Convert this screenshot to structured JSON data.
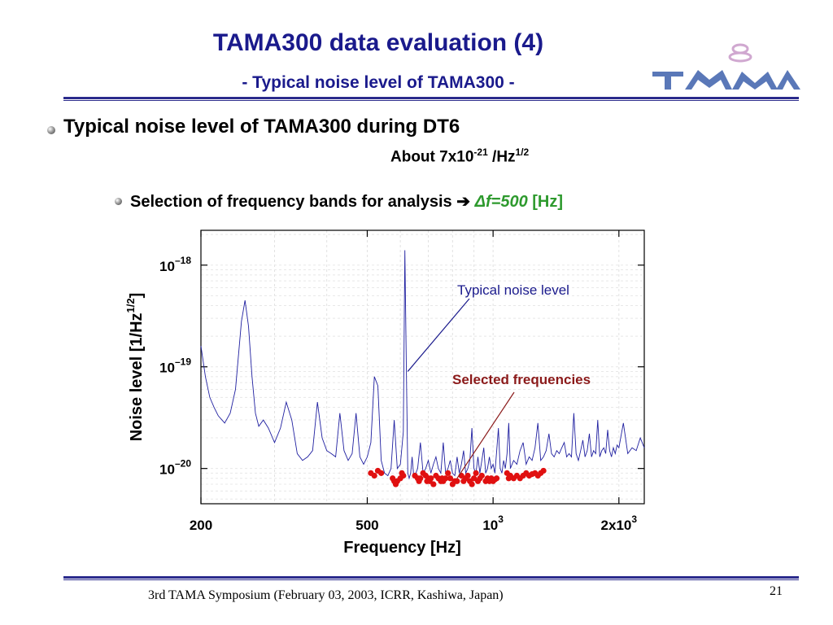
{
  "slide": {
    "title": "TAMA300 data evaluation (4)",
    "subtitle": "- Typical noise level of TAMA300 -",
    "bullet1": "Typical noise level of TAMA300 during DT6",
    "about": {
      "prefix": "About 7x10",
      "exp1": "-21",
      "mid": " /Hz",
      "exp2": "1/2"
    },
    "bullet2": {
      "text": "Selection of frequency bands for analysis ",
      "arrow": "➔",
      "delta": "Δf=500",
      "unit": "[Hz]"
    },
    "footer": "3rd TAMA Symposium (February 03, 2003, ICRR, Kashiwa, Japan)",
    "page_number": "21",
    "logo_icon": "tama-logo-icon"
  },
  "colors": {
    "title": "#1a1a8c",
    "rule": "#2b2b8c",
    "curve": "#2020a0",
    "points": "#e01010",
    "annot_noise": "#1a1a8c",
    "annot_sel": "#8b1a1a",
    "green": "#2e9a2e"
  },
  "chart_data": {
    "type": "line",
    "xscale": "log",
    "yscale": "log",
    "xlabel": "Frequency  [Hz]",
    "ylabel": "Noise level [1/Hz",
    "ylabel_sup": "1/2",
    "ylabel_end": "]",
    "xlim": [
      200,
      2300
    ],
    "ylim": [
      4.5e-21,
      2.2e-18
    ],
    "grid": true,
    "xticks": [
      {
        "value": 200,
        "base": "200",
        "sup": ""
      },
      {
        "value": 500,
        "base": "500",
        "sup": ""
      },
      {
        "value": 1000,
        "base": "10",
        "sup": "3"
      },
      {
        "value": 2000,
        "base": "2x10",
        "sup": "3"
      }
    ],
    "yticks": [
      {
        "value": 1e-18,
        "base": "10",
        "sup": "–18"
      },
      {
        "value": 1e-19,
        "base": "10",
        "sup": "–19"
      },
      {
        "value": 1e-20,
        "base": "10",
        "sup": "–20"
      }
    ],
    "annotations": [
      {
        "text": "Typical noise level",
        "target_x": 625,
        "target_y": 9e-20,
        "color": "#1a1a8c"
      },
      {
        "text": "Selected frequencies",
        "target_x": 820,
        "target_y": 8e-21,
        "color": "#8b1a1a"
      }
    ],
    "series": [
      {
        "kind": "noise",
        "x": [
          200,
          205,
          210,
          215,
          220,
          228,
          235,
          242,
          250,
          255,
          260,
          265,
          270,
          275,
          282,
          290,
          300,
          310,
          320,
          330,
          340,
          350,
          360,
          370,
          380,
          390,
          400,
          410,
          420,
          430,
          440,
          450,
          460,
          470,
          480,
          490,
          500,
          510,
          520,
          530,
          540,
          550,
          560,
          570,
          580,
          590,
          600,
          610,
          615,
          620,
          625,
          630,
          635,
          640,
          645,
          650,
          660,
          670,
          680,
          690,
          700,
          710,
          720,
          730,
          740,
          750,
          760,
          770,
          780,
          790,
          800,
          810,
          820,
          830,
          840,
          850,
          860,
          870,
          880,
          890,
          900,
          910,
          920,
          930,
          940,
          950,
          960,
          970,
          980,
          990,
          1000,
          1010,
          1020,
          1030,
          1040,
          1050,
          1060,
          1070,
          1080,
          1090,
          1100,
          1120,
          1140,
          1160,
          1180,
          1200,
          1220,
          1240,
          1260,
          1280,
          1300,
          1320,
          1340,
          1360,
          1380,
          1400,
          1420,
          1440,
          1460,
          1480,
          1500,
          1520,
          1540,
          1560,
          1580,
          1600,
          1620,
          1640,
          1660,
          1680,
          1700,
          1720,
          1740,
          1760,
          1780,
          1800,
          1820,
          1840,
          1860,
          1880,
          1900,
          1920,
          1940,
          1960,
          1980,
          2000,
          2050,
          2100,
          2150,
          2200,
          2250,
          2300
        ],
        "y": [
          1.6e-19,
          8e-20,
          5e-20,
          4e-20,
          3.3e-20,
          2.8e-20,
          3.5e-20,
          6e-20,
          2.8e-19,
          4.5e-19,
          2.5e-19,
          8e-20,
          3.5e-20,
          2.6e-20,
          3e-20,
          2.5e-20,
          1.8e-20,
          2.5e-20,
          4.5e-20,
          3e-20,
          1.4e-20,
          1.2e-20,
          1.3e-20,
          1.5e-20,
          4.5e-20,
          2e-20,
          1.5e-20,
          1.4e-20,
          1.3e-20,
          3.5e-20,
          1.5e-20,
          1.2e-20,
          1.4e-20,
          3.5e-20,
          1.3e-20,
          1.1e-20,
          1.3e-20,
          1.8e-20,
          8e-20,
          6.5e-20,
          1.2e-20,
          9e-21,
          8.5e-21,
          1e-20,
          3e-20,
          1e-20,
          1.1e-20,
          2.3e-20,
          1.4e-18,
          1e-19,
          9e-21,
          8e-21,
          9e-21,
          1.3e-20,
          9e-21,
          8.5e-21,
          1e-20,
          1.8e-20,
          9e-21,
          1e-20,
          1.2e-20,
          9e-21,
          1.1e-20,
          1.3e-20,
          1e-20,
          9e-21,
          1.8e-20,
          9e-21,
          1e-20,
          1.2e-20,
          9e-21,
          8.5e-21,
          1.3e-20,
          9e-21,
          1.1e-20,
          1.5e-20,
          9e-21,
          1e-20,
          1.2e-20,
          2.5e-20,
          1e-20,
          9e-21,
          1.3e-20,
          9e-21,
          1.2e-20,
          1.6e-20,
          9e-21,
          1e-20,
          1.3e-20,
          1e-20,
          1.1e-20,
          9e-21,
          1.5e-20,
          2.5e-20,
          1e-20,
          9e-21,
          1.2e-20,
          1e-20,
          1.4e-20,
          2.8e-20,
          1e-20,
          1.2e-20,
          1.1e-20,
          1.5e-20,
          1.8e-20,
          1.1e-20,
          1.3e-20,
          1.2e-20,
          1.6e-20,
          2.8e-20,
          1.2e-20,
          1.3e-20,
          1.5e-20,
          2.2e-20,
          1.4e-20,
          1.3e-20,
          1.5e-20,
          1.4e-20,
          1.6e-20,
          1.8e-20,
          1.3e-20,
          1.4e-20,
          1.3e-20,
          3.5e-20,
          1.4e-20,
          1.2e-20,
          1.5e-20,
          1.9e-20,
          1.3e-20,
          1.5e-20,
          2.2e-20,
          1.3e-20,
          1.5e-20,
          1.4e-20,
          3e-20,
          1.3e-20,
          1.5e-20,
          1.6e-20,
          1.4e-20,
          2.4e-20,
          1.5e-20,
          1.3e-20,
          1.6e-20,
          1.4e-20,
          1.7e-20,
          1.6e-20,
          2.8e-20,
          1.4e-20,
          1.6e-20,
          1.5e-20,
          2e-20,
          1.6e-20
        ]
      },
      {
        "kind": "selected",
        "x": [
          510,
          520,
          530,
          540,
          575,
          580,
          585,
          590,
          600,
          605,
          610,
          650,
          660,
          665,
          670,
          680,
          690,
          695,
          700,
          705,
          710,
          720,
          730,
          740,
          750,
          755,
          760,
          770,
          780,
          790,
          800,
          810,
          820,
          840,
          850,
          860,
          870,
          880,
          890,
          900,
          910,
          920,
          930,
          940,
          960,
          970,
          980,
          990,
          1000,
          1010,
          1020,
          1080,
          1090,
          1100,
          1120,
          1140,
          1160,
          1180,
          1200,
          1220,
          1240,
          1260,
          1280,
          1300,
          1320
        ],
        "y": [
          9e-21,
          8.5e-21,
          9.5e-21,
          9e-21,
          8e-21,
          7.5e-21,
          7e-21,
          7.5e-21,
          8e-21,
          9e-21,
          8.5e-21,
          8.5e-21,
          8e-21,
          7.5e-21,
          8e-21,
          9e-21,
          8.5e-21,
          7.5e-21,
          8e-21,
          7.5e-21,
          8e-21,
          7e-21,
          8.5e-21,
          8e-21,
          7.5e-21,
          8e-21,
          7.5e-21,
          8e-21,
          9e-21,
          8e-21,
          7e-21,
          7.5e-21,
          7.5e-21,
          8.5e-21,
          7.5e-21,
          8e-21,
          8.5e-21,
          7.5e-21,
          7e-21,
          8e-21,
          9e-21,
          7.5e-21,
          8e-21,
          8.5e-21,
          7.5e-21,
          8e-21,
          7.5e-21,
          8e-21,
          7.5e-21,
          7.8e-21,
          8e-21,
          9e-21,
          8e-21,
          8.5e-21,
          8e-21,
          8.5e-21,
          8e-21,
          8.5e-21,
          9e-21,
          8.5e-21,
          8.8e-21,
          9e-21,
          8.5e-21,
          9e-21,
          9.5e-21
        ]
      }
    ]
  }
}
